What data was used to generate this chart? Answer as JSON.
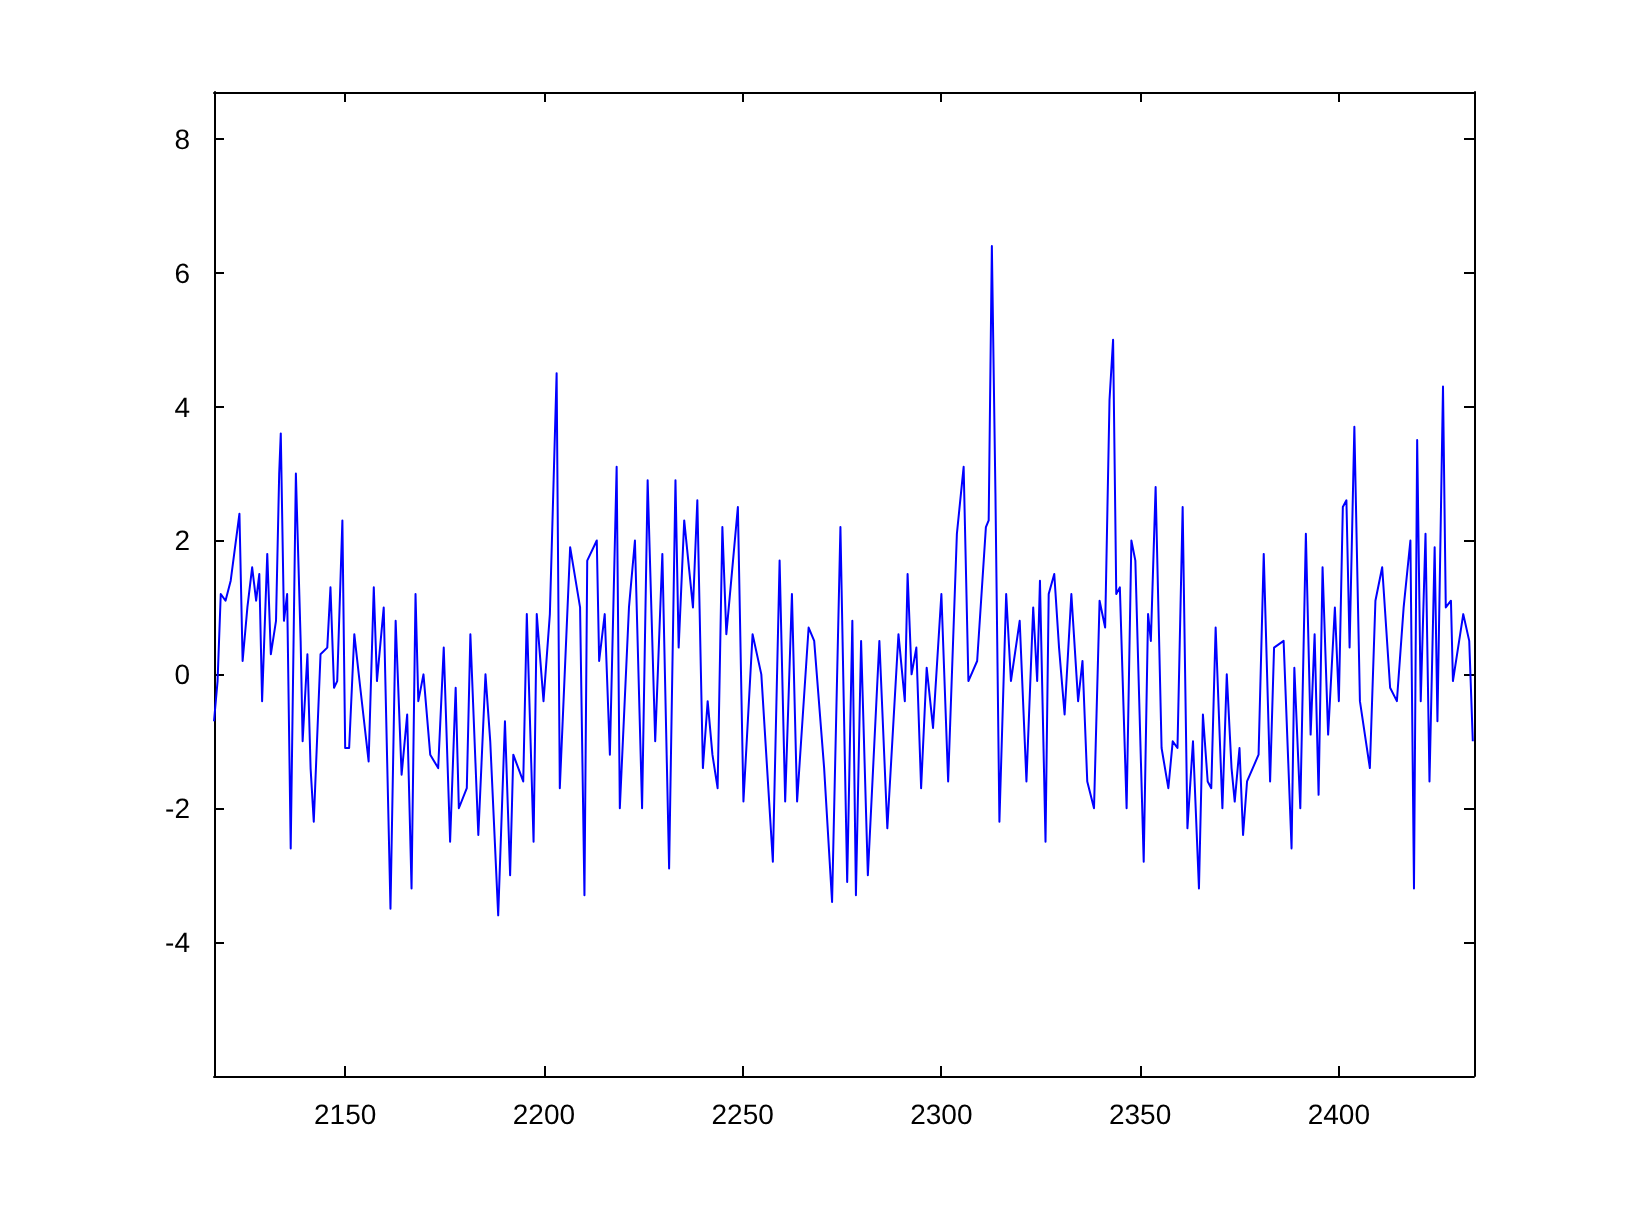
{
  "chart_data": {
    "type": "line",
    "xlim": [
      2117,
      2434
    ],
    "xticks": [
      2150,
      2200,
      2250,
      2300,
      2350,
      2400
    ],
    "ylim": [
      -6,
      8.7
    ],
    "yticks": [
      -4,
      -2,
      0,
      2,
      4,
      6,
      8
    ],
    "grid": false,
    "marker": "none",
    "line_style": "solid",
    "series": [
      {
        "color": "#0000ff",
        "x": [
          2117.0,
          2117.9,
          2118.7,
          2119.9,
          2121.2,
          2123.4,
          2124.2,
          2125.4,
          2126.6,
          2127.6,
          2128.4,
          2129.1,
          2130.4,
          2131.3,
          2132.6,
          2133.4,
          2133.8,
          2134.6,
          2135.4,
          2136.3,
          2137.6,
          2138.8,
          2139.3,
          2140.5,
          2141.3,
          2142.1,
          2143.8,
          2145.5,
          2146.3,
          2147.2,
          2148.0,
          2149.3,
          2150.0,
          2151.0,
          2152.3,
          2153.8,
          2155.9,
          2157.2,
          2158.0,
          2159.7,
          2161.4,
          2162.7,
          2164.2,
          2165.6,
          2166.7,
          2167.7,
          2168.4,
          2169.7,
          2171.4,
          2173.4,
          2174.8,
          2176.4,
          2177.8,
          2178.6,
          2180.6,
          2181.5,
          2183.5,
          2185.3,
          2186.5,
          2188.5,
          2190.2,
          2191.5,
          2192.3,
          2194.8,
          2195.7,
          2197.4,
          2198.2,
          2199.9,
          2201.5,
          2203.2,
          2204.0,
          2206.6,
          2209.1,
          2210.2,
          2210.9,
          2213.3,
          2213.9,
          2215.3,
          2216.6,
          2218.3,
          2219.1,
          2221.4,
          2222.9,
          2224.7,
          2226.1,
          2228.0,
          2229.8,
          2231.5,
          2233.1,
          2233.9,
          2235.3,
          2237.5,
          2238.6,
          2240.0,
          2241.2,
          2242.4,
          2243.7,
          2244.9,
          2245.9,
          2248.8,
          2250.2,
          2252.5,
          2254.7,
          2257.6,
          2259.3,
          2260.7,
          2262.4,
          2263.7,
          2266.6,
          2268.0,
          2270.5,
          2272.5,
          2274.6,
          2276.3,
          2277.6,
          2278.5,
          2279.8,
          2281.5,
          2284.4,
          2286.4,
          2289.2,
          2290.8,
          2291.5,
          2292.5,
          2293.7,
          2294.9,
          2296.3,
          2297.9,
          2300.0,
          2301.7,
          2303.9,
          2305.6,
          2306.8,
          2309.0,
          2311.2,
          2311.9,
          2312.7,
          2313.6,
          2314.6,
          2316.3,
          2317.5,
          2319.7,
          2321.4,
          2323.1,
          2324.1,
          2324.8,
          2326.2,
          2327.0,
          2328.4,
          2329.6,
          2331.0,
          2332.7,
          2334.4,
          2335.5,
          2336.7,
          2338.4,
          2339.8,
          2341.2,
          2342.3,
          2343.2,
          2344.0,
          2344.9,
          2346.6,
          2347.8,
          2348.8,
          2350.9,
          2352.0,
          2352.7,
          2353.9,
          2355.4,
          2357.1,
          2358.2,
          2359.4,
          2360.7,
          2361.9,
          2363.3,
          2364.8,
          2365.8,
          2367.0,
          2367.9,
          2369.0,
          2370.7,
          2371.8,
          2373.0,
          2373.8,
          2375.0,
          2375.9,
          2376.9,
          2379.8,
          2381.1,
          2382.7,
          2383.7,
          2386.1,
          2388.1,
          2388.8,
          2390.3,
          2391.7,
          2392.9,
          2393.9,
          2394.9,
          2395.9,
          2397.3,
          2399.0,
          2400.0,
          2401.0,
          2401.9,
          2402.7,
          2403.9,
          2405.3,
          2407.8,
          2409.2,
          2410.9,
          2412.9,
          2414.6,
          2416.3,
          2418.0,
          2418.9,
          2419.7,
          2420.6,
          2421.8,
          2422.8,
          2424.1,
          2424.8,
          2426.2,
          2426.9,
          2428.2,
          2428.7,
          2431.3,
          2432.8,
          2433.7
        ],
        "values": [
          -0.7,
          -0.1,
          1.2,
          1.1,
          1.4,
          2.4,
          0.2,
          1.0,
          1.6,
          1.1,
          1.5,
          -0.4,
          1.8,
          0.3,
          0.8,
          3.0,
          3.6,
          0.8,
          1.2,
          -2.6,
          3.0,
          0.5,
          -1.0,
          0.3,
          -1.4,
          -2.2,
          0.3,
          0.4,
          1.3,
          -0.2,
          -0.1,
          2.3,
          -1.1,
          -1.1,
          0.6,
          -0.2,
          -1.3,
          1.3,
          -0.1,
          1.0,
          -3.5,
          0.8,
          -1.5,
          -0.6,
          -3.2,
          1.2,
          -0.4,
          0.0,
          -1.2,
          -1.4,
          0.4,
          -2.5,
          -0.2,
          -2.0,
          -1.7,
          0.6,
          -2.4,
          0.0,
          -1.0,
          -3.6,
          -0.7,
          -3.0,
          -1.2,
          -1.6,
          0.9,
          -2.5,
          0.9,
          -0.4,
          0.9,
          4.5,
          -1.7,
          1.9,
          1.0,
          -3.3,
          1.7,
          2.0,
          0.2,
          0.9,
          -1.2,
          3.1,
          -2.0,
          1.0,
          2.0,
          -2.0,
          2.9,
          -1.0,
          1.8,
          -2.9,
          2.9,
          0.4,
          2.3,
          1.0,
          2.6,
          -1.4,
          -0.4,
          -1.2,
          -1.7,
          2.2,
          0.6,
          2.5,
          -1.9,
          0.6,
          0.0,
          -2.8,
          1.7,
          -1.9,
          1.2,
          -1.9,
          0.7,
          0.5,
          -1.4,
          -3.4,
          2.2,
          -3.1,
          0.8,
          -3.3,
          0.5,
          -3.0,
          0.5,
          -2.3,
          0.6,
          -0.4,
          1.5,
          0.0,
          0.4,
          -1.7,
          0.1,
          -0.8,
          1.2,
          -1.6,
          2.1,
          3.1,
          -0.1,
          0.2,
          2.2,
          2.3,
          6.4,
          2.7,
          -2.2,
          1.2,
          -0.1,
          0.8,
          -1.6,
          1.0,
          -0.1,
          1.4,
          -2.5,
          1.2,
          1.5,
          0.4,
          -0.6,
          1.2,
          -0.4,
          0.2,
          -1.6,
          -2.0,
          1.1,
          0.7,
          4.1,
          5.0,
          1.2,
          1.3,
          -2.0,
          2.0,
          1.7,
          -2.8,
          0.9,
          0.5,
          2.8,
          -1.1,
          -1.7,
          -1.0,
          -1.1,
          2.5,
          -2.3,
          -1.0,
          -3.2,
          -0.6,
          -1.6,
          -1.7,
          0.7,
          -2.0,
          0.0,
          -1.4,
          -1.9,
          -1.1,
          -2.4,
          -1.6,
          -1.2,
          1.8,
          -1.6,
          0.4,
          0.5,
          -2.6,
          0.1,
          -2.0,
          2.1,
          -0.9,
          0.6,
          -1.8,
          1.6,
          -0.9,
          1.0,
          -0.4,
          2.5,
          2.6,
          0.4,
          3.7,
          -0.4,
          -1.4,
          1.1,
          1.6,
          -0.2,
          -0.4,
          1.0,
          2.0,
          -3.2,
          3.5,
          -0.4,
          2.1,
          -1.6,
          1.9,
          -0.7,
          4.3,
          1.0,
          1.1,
          -0.1,
          0.9,
          0.5,
          -1.0
        ]
      }
    ]
  }
}
